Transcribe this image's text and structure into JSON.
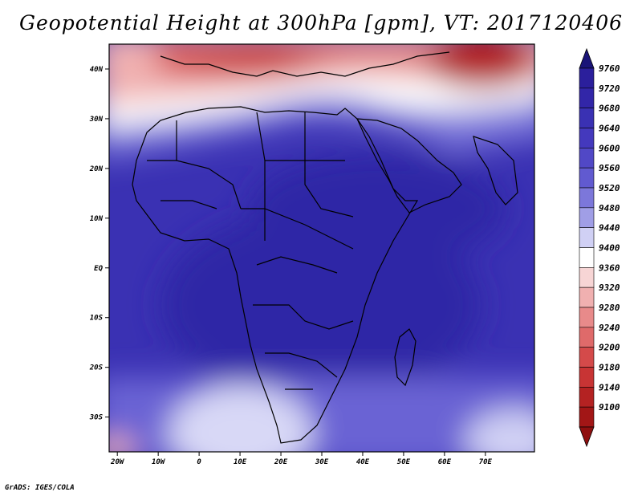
{
  "title": "Geopotential Height at 300hPa [gpm], VT: 2017120406",
  "credit": "GrADS: IGES/COLA",
  "map": {
    "lon_range": [
      -22,
      82
    ],
    "lat_range": [
      -37,
      45
    ],
    "lat_ticks": [
      {
        "value": 40,
        "label": "40N"
      },
      {
        "value": 30,
        "label": "30N"
      },
      {
        "value": 20,
        "label": "20N"
      },
      {
        "value": 10,
        "label": "10N"
      },
      {
        "value": 0,
        "label": "EQ"
      },
      {
        "value": -10,
        "label": "10S"
      },
      {
        "value": -20,
        "label": "20S"
      },
      {
        "value": -30,
        "label": "30S"
      }
    ],
    "lon_ticks": [
      {
        "value": -20,
        "label": "20W"
      },
      {
        "value": -10,
        "label": "10W"
      },
      {
        "value": 0,
        "label": "0"
      },
      {
        "value": 10,
        "label": "10E"
      },
      {
        "value": 20,
        "label": "20E"
      },
      {
        "value": 30,
        "label": "30E"
      },
      {
        "value": 40,
        "label": "40E"
      },
      {
        "value": 50,
        "label": "50E"
      },
      {
        "value": 60,
        "label": "60E"
      },
      {
        "value": 70,
        "label": "70E"
      }
    ]
  },
  "colorbar": {
    "levels": [
      {
        "label": "9760",
        "color": "#2b1f9c"
      },
      {
        "label": "9720",
        "color": "#3226a8"
      },
      {
        "label": "9680",
        "color": "#3a31b3"
      },
      {
        "label": "9640",
        "color": "#4439bd"
      },
      {
        "label": "9600",
        "color": "#5148c6"
      },
      {
        "label": "9560",
        "color": "#615ad0"
      },
      {
        "label": "9520",
        "color": "#7c77da"
      },
      {
        "label": "9480",
        "color": "#a09ee6"
      },
      {
        "label": "9440",
        "color": "#d0d0f4"
      },
      {
        "label": "9400",
        "color": "#ffffff"
      },
      {
        "label": "9360",
        "color": "#f7d5d5"
      },
      {
        "label": "9320",
        "color": "#f0b0b0"
      },
      {
        "label": "9280",
        "color": "#e88a8a"
      },
      {
        "label": "9240",
        "color": "#df6a6a"
      },
      {
        "label": "9200",
        "color": "#d44a4a"
      },
      {
        "label": "9180",
        "color": "#c83434"
      },
      {
        "label": "9140",
        "color": "#b42222"
      },
      {
        "label": "9100",
        "color": "#a21616"
      }
    ],
    "top_arrow_color": "#1a1478",
    "bottom_arrow_color": "#8f0f0f"
  }
}
